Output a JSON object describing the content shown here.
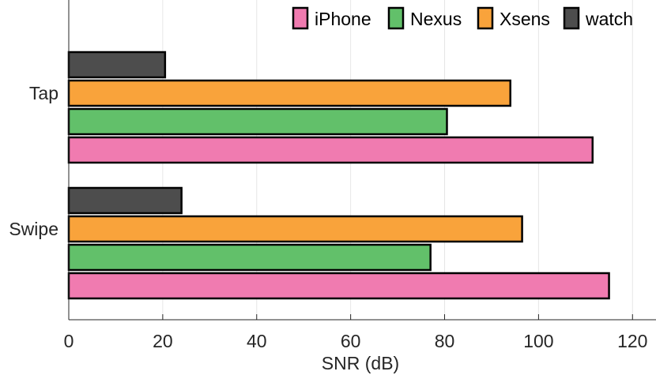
{
  "chart_data": {
    "type": "bar",
    "orientation": "horizontal",
    "categories": [
      "Tap",
      "Swipe"
    ],
    "series": [
      {
        "name": "iPhone",
        "color": "#f07bb0",
        "values": [
          111.5,
          115
        ]
      },
      {
        "name": "Nexus",
        "color": "#62c06a",
        "values": [
          80.5,
          77
        ]
      },
      {
        "name": "Xsens",
        "color": "#f9a33b",
        "values": [
          94,
          96.5
        ]
      },
      {
        "name": "watch",
        "color": "#4d4d4d",
        "values": [
          20.5,
          24
        ]
      }
    ],
    "xlabel": "SNR (dB)",
    "ylabel": "",
    "xlim": [
      0,
      125
    ],
    "xticks": [
      "0",
      "20",
      "40",
      "60",
      "80",
      "100",
      "120"
    ],
    "xtick_values": [
      0,
      20,
      40,
      60,
      80,
      100,
      120
    ],
    "grid": true,
    "legend_position": "top-right"
  }
}
